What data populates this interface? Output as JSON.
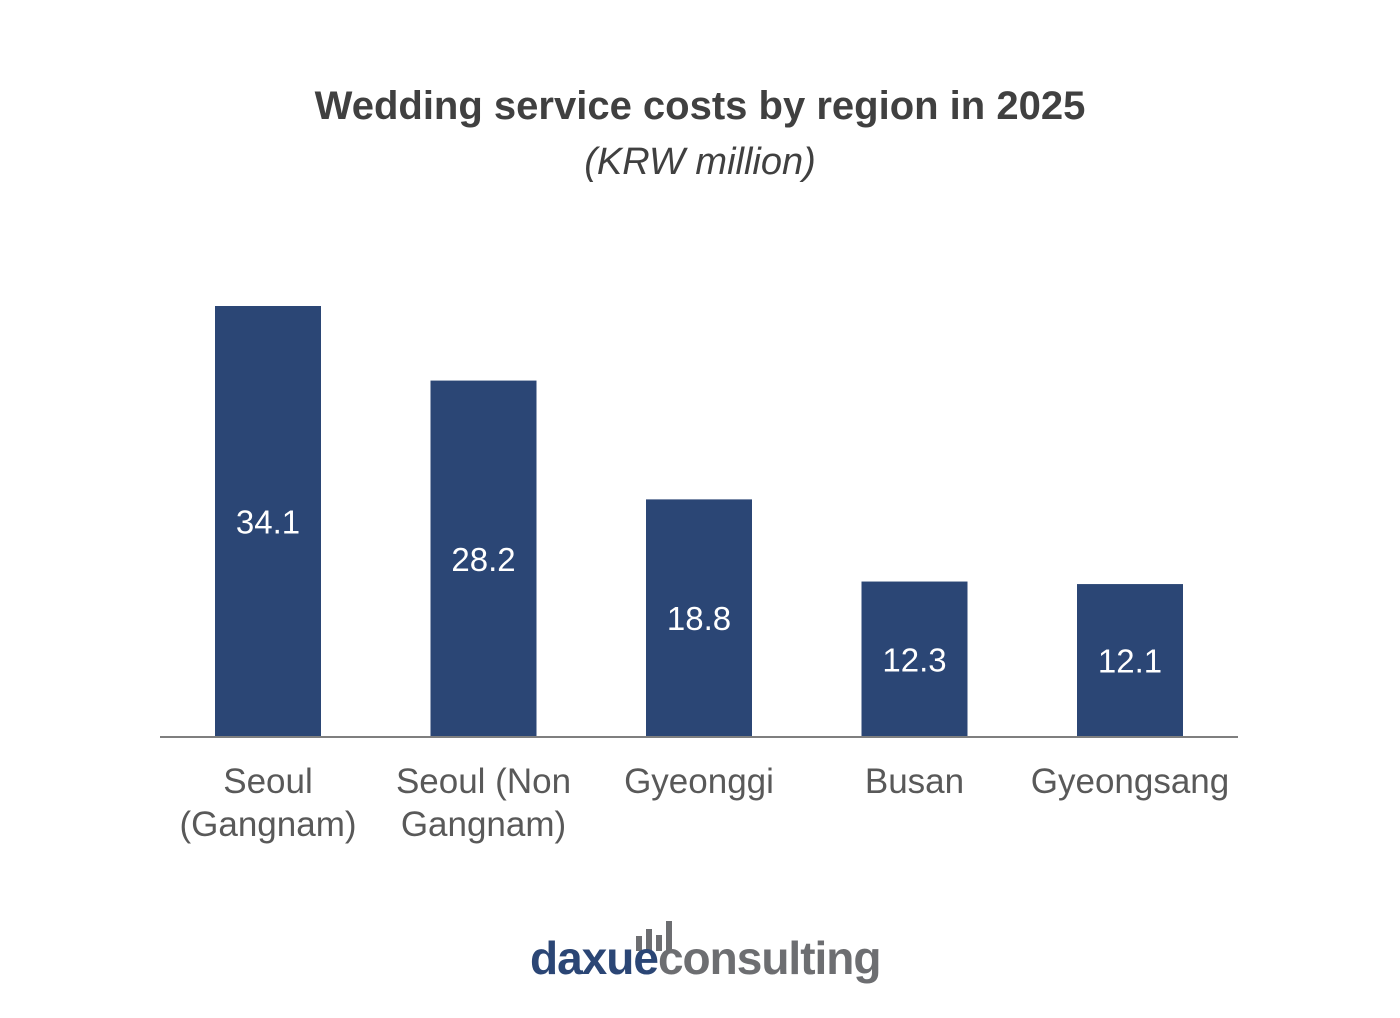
{
  "chart_data": {
    "type": "bar",
    "title": "Wedding service costs by region in 2025",
    "subtitle": "(KRW million)",
    "categories": [
      [
        "Seoul",
        "(Gangnam)"
      ],
      [
        "Seoul (Non",
        "Gangnam)"
      ],
      [
        "Gyeonggi"
      ],
      [
        "Busan"
      ],
      [
        "Gyeongsang"
      ]
    ],
    "values": [
      34.1,
      28.2,
      18.8,
      12.3,
      12.1
    ],
    "data_labels": [
      "34.1",
      "28.2",
      "18.8",
      "12.3",
      "12.1"
    ],
    "ylim": [
      0,
      40
    ],
    "grid": false,
    "legend": "none",
    "bar_color": "#2b4675",
    "axis_color": "#7f7f7f"
  },
  "logo": {
    "text_a": "daxue",
    "text_b": "consulting",
    "icon": "bar-chart-icon",
    "color_a": "#2b4675",
    "color_b": "#6d6e71",
    "bar_levels": [
      0.5,
      0.75,
      0.55,
      1.0
    ]
  }
}
